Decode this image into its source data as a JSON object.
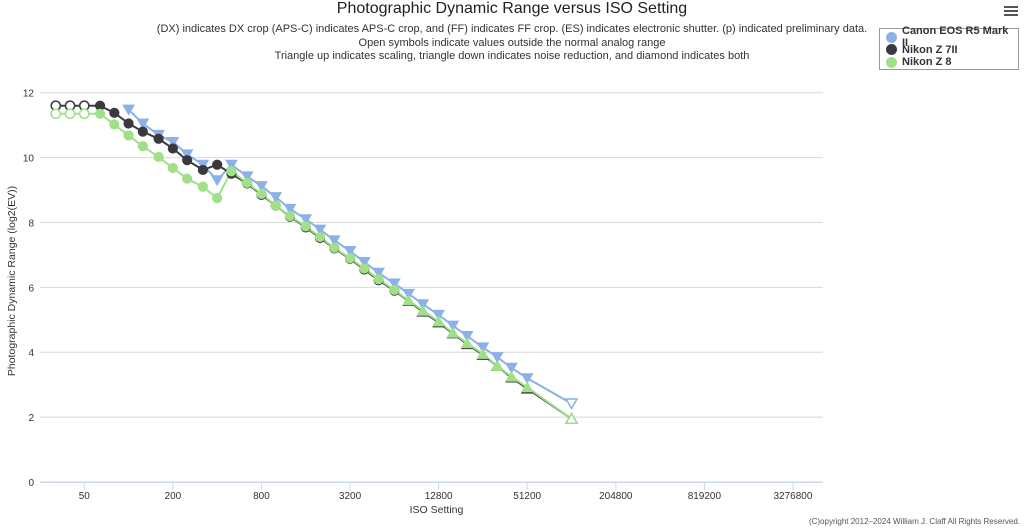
{
  "header": {
    "title": "Photographic Dynamic Range versus ISO Setting",
    "subtitle_lines": [
      "(DX) indicates DX crop (APS-C) indicates APS-C crop, and (FF) indicates FF crop. (ES) indicates electronic shutter. (p) indicated preliminary data.",
      "Open symbols indicate values outside the normal analog range",
      "Triangle up indicates scaling, triangle down indicates noise reduction, and diamond indicates both"
    ],
    "menu_icon": "hamburger-menu-icon"
  },
  "legend": {
    "items": [
      {
        "label": "Canon EOS R5 Mark II",
        "color": "#8bb1e6"
      },
      {
        "label": "Nikon Z 7II",
        "color": "#3a3a3e"
      },
      {
        "label": "Nikon Z 8",
        "color": "#9fe088"
      }
    ]
  },
  "copyright": "(C)opyright 2012–2024 William J. Claff All Rights Reserved.",
  "chart_data": {
    "type": "line",
    "title": "Photographic Dynamic Range versus ISO Setting",
    "xlabel": "ISO Setting",
    "ylabel": "Photographic Dynamic Range (log2(EV))",
    "x_scale": "log2",
    "xlim": [
      25,
      5242880
    ],
    "ylim": [
      0,
      12.7
    ],
    "x_ticks": [
      50,
      200,
      800,
      3200,
      12800,
      51200,
      204800,
      819200,
      3276800
    ],
    "x_tick_labels": [
      "50",
      "200",
      "800",
      "3200",
      "12800",
      "51200",
      "204800",
      "819200",
      "3276800"
    ],
    "y_ticks": [
      0,
      2,
      4,
      6,
      8,
      10,
      12
    ],
    "y_tick_labels": [
      "0",
      "2",
      "4",
      "6",
      "8",
      "10",
      "12"
    ],
    "grid": true,
    "legend_position": "top-right",
    "series": [
      {
        "name": "Canon EOS R5 Mark II",
        "color": "#8bb1e6",
        "points": [
          {
            "x": 100,
            "y": 11.48,
            "marker": "triangle-down",
            "open": false
          },
          {
            "x": 125,
            "y": 11.05,
            "marker": "triangle-down",
            "open": false
          },
          {
            "x": 160,
            "y": 10.7,
            "marker": "triangle-down",
            "open": false
          },
          {
            "x": 200,
            "y": 10.48,
            "marker": "triangle-down",
            "open": false
          },
          {
            "x": 250,
            "y": 10.1,
            "marker": "triangle-down",
            "open": false
          },
          {
            "x": 320,
            "y": 9.78,
            "marker": "triangle-down",
            "open": false
          },
          {
            "x": 400,
            "y": 9.3,
            "marker": "triangle-down",
            "open": false
          },
          {
            "x": 500,
            "y": 9.78,
            "marker": "triangle-down",
            "open": false
          },
          {
            "x": 640,
            "y": 9.42,
            "marker": "triangle-down",
            "open": false
          },
          {
            "x": 800,
            "y": 9.12,
            "marker": "triangle-down",
            "open": false
          },
          {
            "x": 1000,
            "y": 8.78,
            "marker": "triangle-down",
            "open": false
          },
          {
            "x": 1250,
            "y": 8.42,
            "marker": "triangle-down",
            "open": false
          },
          {
            "x": 1600,
            "y": 8.1,
            "marker": "triangle-down",
            "open": false
          },
          {
            "x": 2000,
            "y": 7.78,
            "marker": "triangle-down",
            "open": false
          },
          {
            "x": 2500,
            "y": 7.45,
            "marker": "triangle-down",
            "open": false
          },
          {
            "x": 3200,
            "y": 7.12,
            "marker": "triangle-down",
            "open": false
          },
          {
            "x": 4000,
            "y": 6.78,
            "marker": "triangle-down",
            "open": false
          },
          {
            "x": 5000,
            "y": 6.45,
            "marker": "triangle-down",
            "open": false
          },
          {
            "x": 6400,
            "y": 6.12,
            "marker": "triangle-down",
            "open": false
          },
          {
            "x": 8000,
            "y": 5.8,
            "marker": "triangle-down",
            "open": false
          },
          {
            "x": 10000,
            "y": 5.48,
            "marker": "triangle-down",
            "open": false
          },
          {
            "x": 12800,
            "y": 5.15,
            "marker": "triangle-down",
            "open": false
          },
          {
            "x": 16000,
            "y": 4.82,
            "marker": "triangle-down",
            "open": false
          },
          {
            "x": 20000,
            "y": 4.5,
            "marker": "triangle-down",
            "open": false
          },
          {
            "x": 25600,
            "y": 4.15,
            "marker": "triangle-down",
            "open": false
          },
          {
            "x": 32000,
            "y": 3.85,
            "marker": "triangle-down",
            "open": false
          },
          {
            "x": 40000,
            "y": 3.52,
            "marker": "triangle-down",
            "open": false
          },
          {
            "x": 51200,
            "y": 3.2,
            "marker": "triangle-down",
            "open": false
          },
          {
            "x": 102400,
            "y": 2.42,
            "marker": "triangle-down",
            "open": true
          }
        ]
      },
      {
        "name": "Nikon Z 7II",
        "color": "#3a3a3e",
        "points": [
          {
            "x": 32,
            "y": 11.6,
            "marker": "circle",
            "open": true
          },
          {
            "x": 40,
            "y": 11.6,
            "marker": "circle",
            "open": true
          },
          {
            "x": 50,
            "y": 11.6,
            "marker": "circle",
            "open": true
          },
          {
            "x": 64,
            "y": 11.6,
            "marker": "circle",
            "open": false
          },
          {
            "x": 80,
            "y": 11.38,
            "marker": "circle",
            "open": false
          },
          {
            "x": 100,
            "y": 11.05,
            "marker": "circle",
            "open": false
          },
          {
            "x": 125,
            "y": 10.8,
            "marker": "circle",
            "open": false
          },
          {
            "x": 160,
            "y": 10.58,
            "marker": "circle",
            "open": false
          },
          {
            "x": 200,
            "y": 10.28,
            "marker": "circle",
            "open": false
          },
          {
            "x": 250,
            "y": 9.92,
            "marker": "circle",
            "open": false
          },
          {
            "x": 320,
            "y": 9.62,
            "marker": "circle",
            "open": false
          },
          {
            "x": 400,
            "y": 9.78,
            "marker": "circle",
            "open": false
          },
          {
            "x": 500,
            "y": 9.5,
            "marker": "circle",
            "open": false
          },
          {
            "x": 640,
            "y": 9.2,
            "marker": "circle",
            "open": false
          },
          {
            "x": 800,
            "y": 8.85,
            "marker": "circle",
            "open": false
          },
          {
            "x": 1000,
            "y": 8.52,
            "marker": "circle",
            "open": false
          },
          {
            "x": 1250,
            "y": 8.18,
            "marker": "circle",
            "open": false
          },
          {
            "x": 1600,
            "y": 7.85,
            "marker": "circle",
            "open": false
          },
          {
            "x": 2000,
            "y": 7.52,
            "marker": "circle",
            "open": false
          },
          {
            "x": 2500,
            "y": 7.2,
            "marker": "circle",
            "open": false
          },
          {
            "x": 3200,
            "y": 6.88,
            "marker": "circle",
            "open": false
          },
          {
            "x": 4000,
            "y": 6.55,
            "marker": "circle",
            "open": false
          },
          {
            "x": 5000,
            "y": 6.22,
            "marker": "circle",
            "open": false
          },
          {
            "x": 6400,
            "y": 5.9,
            "marker": "circle",
            "open": false
          },
          {
            "x": 8000,
            "y": 5.58,
            "marker": "triangle-up",
            "open": false
          },
          {
            "x": 10000,
            "y": 5.25,
            "marker": "triangle-up",
            "open": false
          },
          {
            "x": 12800,
            "y": 4.92,
            "marker": "triangle-up",
            "open": false
          },
          {
            "x": 16000,
            "y": 4.58,
            "marker": "triangle-up",
            "open": false
          },
          {
            "x": 20000,
            "y": 4.25,
            "marker": "triangle-up",
            "open": false
          },
          {
            "x": 25600,
            "y": 3.92,
            "marker": "triangle-up",
            "open": false
          },
          {
            "x": 32000,
            "y": 3.58,
            "marker": "triangle-up",
            "open": false
          },
          {
            "x": 40000,
            "y": 3.22,
            "marker": "triangle-up",
            "open": false
          },
          {
            "x": 51200,
            "y": 2.88,
            "marker": "triangle-up",
            "open": false
          },
          {
            "x": 102400,
            "y": 1.95,
            "marker": "triangle-up",
            "open": true
          }
        ]
      },
      {
        "name": "Nikon Z 8",
        "color": "#9fe088",
        "points": [
          {
            "x": 32,
            "y": 11.35,
            "marker": "circle",
            "open": true
          },
          {
            "x": 40,
            "y": 11.35,
            "marker": "circle",
            "open": true
          },
          {
            "x": 50,
            "y": 11.35,
            "marker": "circle",
            "open": true
          },
          {
            "x": 64,
            "y": 11.35,
            "marker": "circle",
            "open": false
          },
          {
            "x": 80,
            "y": 11.02,
            "marker": "circle",
            "open": false
          },
          {
            "x": 100,
            "y": 10.68,
            "marker": "circle",
            "open": false
          },
          {
            "x": 125,
            "y": 10.35,
            "marker": "circle",
            "open": false
          },
          {
            "x": 160,
            "y": 10.02,
            "marker": "circle",
            "open": false
          },
          {
            "x": 200,
            "y": 9.68,
            "marker": "circle",
            "open": false
          },
          {
            "x": 250,
            "y": 9.35,
            "marker": "circle",
            "open": false
          },
          {
            "x": 320,
            "y": 9.1,
            "marker": "circle",
            "open": false
          },
          {
            "x": 400,
            "y": 8.75,
            "marker": "circle",
            "open": false
          },
          {
            "x": 500,
            "y": 9.58,
            "marker": "circle",
            "open": false
          },
          {
            "x": 640,
            "y": 9.22,
            "marker": "circle",
            "open": false
          },
          {
            "x": 800,
            "y": 8.88,
            "marker": "circle",
            "open": false
          },
          {
            "x": 1000,
            "y": 8.52,
            "marker": "circle",
            "open": false
          },
          {
            "x": 1250,
            "y": 8.2,
            "marker": "circle",
            "open": false
          },
          {
            "x": 1600,
            "y": 7.88,
            "marker": "circle",
            "open": false
          },
          {
            "x": 2000,
            "y": 7.55,
            "marker": "circle",
            "open": false
          },
          {
            "x": 2500,
            "y": 7.22,
            "marker": "circle",
            "open": false
          },
          {
            "x": 3200,
            "y": 6.9,
            "marker": "circle",
            "open": false
          },
          {
            "x": 4000,
            "y": 6.58,
            "marker": "circle",
            "open": false
          },
          {
            "x": 5000,
            "y": 6.25,
            "marker": "circle",
            "open": false
          },
          {
            "x": 6400,
            "y": 5.92,
            "marker": "circle",
            "open": false
          },
          {
            "x": 8000,
            "y": 5.6,
            "marker": "triangle-up",
            "open": false
          },
          {
            "x": 10000,
            "y": 5.28,
            "marker": "triangle-up",
            "open": false
          },
          {
            "x": 12800,
            "y": 4.95,
            "marker": "triangle-up",
            "open": false
          },
          {
            "x": 16000,
            "y": 4.6,
            "marker": "triangle-up",
            "open": false
          },
          {
            "x": 20000,
            "y": 4.28,
            "marker": "triangle-up",
            "open": false
          },
          {
            "x": 25600,
            "y": 3.95,
            "marker": "triangle-up",
            "open": false
          },
          {
            "x": 32000,
            "y": 3.58,
            "marker": "triangle-up",
            "open": false
          },
          {
            "x": 40000,
            "y": 3.25,
            "marker": "triangle-up",
            "open": false
          },
          {
            "x": 51200,
            "y": 2.92,
            "marker": "triangle-up",
            "open": false
          },
          {
            "x": 102400,
            "y": 1.95,
            "marker": "triangle-up",
            "open": true
          }
        ]
      }
    ]
  }
}
